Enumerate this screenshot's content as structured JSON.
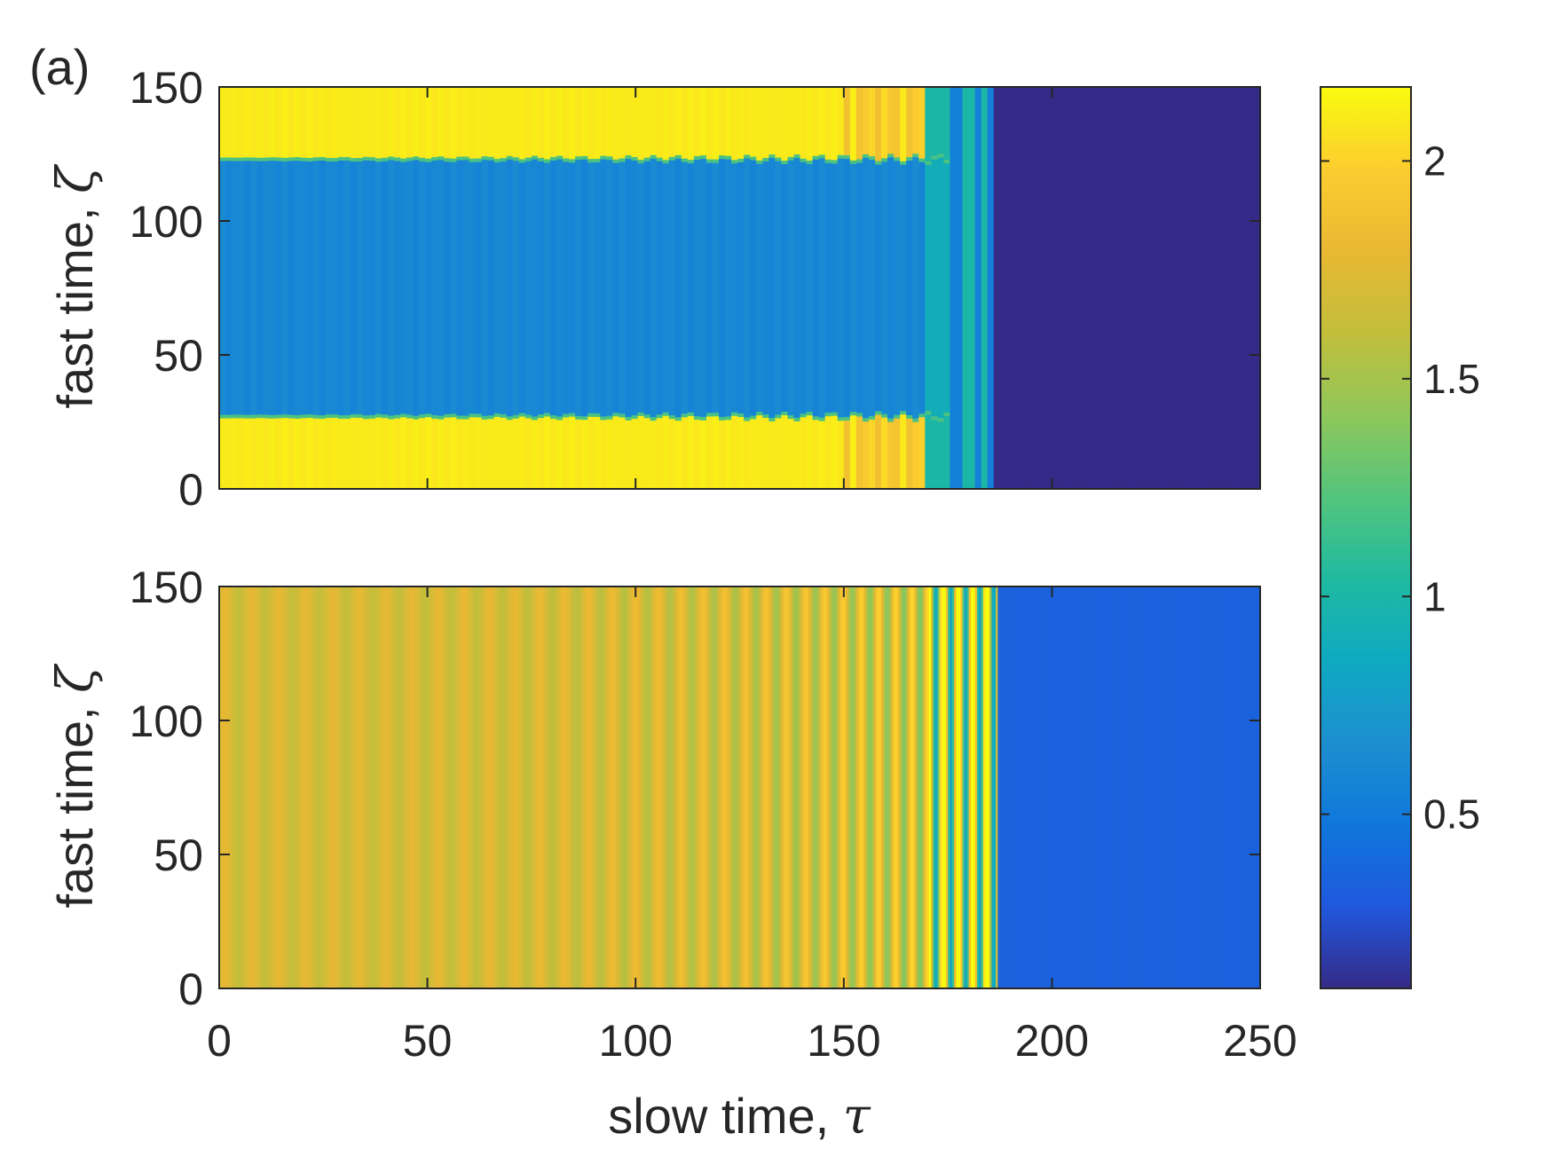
{
  "chart_data": {
    "type": "heatmap",
    "panel_label": "(a)",
    "x": {
      "label_text": "slow time, ",
      "label_symbol": "τ",
      "range": [
        0,
        250
      ],
      "ticks": [
        0,
        50,
        100,
        150,
        200,
        250
      ],
      "tick_labels": [
        "0",
        "50",
        "100",
        "150",
        "200",
        "250"
      ]
    },
    "colorbar": {
      "range": [
        0.1,
        2.17
      ],
      "ticks": [
        0.5,
        1,
        1.5,
        2
      ],
      "tick_labels": [
        "0.5",
        "1",
        "1.5",
        "2"
      ],
      "colormap": "parula",
      "colormap_stops": [
        "#352a87",
        "#2058de",
        "#0f77db",
        "#1d8fd0",
        "#0fa9c2",
        "#1fbaa0",
        "#54c47c",
        "#8fc75a",
        "#c2be3b",
        "#e9b833",
        "#fccd2f",
        "#f9fb0e"
      ]
    },
    "panels": [
      {
        "name": "top",
        "y": {
          "label_text": "fast time, ",
          "label_symbol": "ζ",
          "range": [
            0,
            150
          ],
          "ticks": [
            0,
            50,
            100,
            150
          ],
          "tick_labels": [
            "0",
            "50",
            "100",
            "150"
          ]
        },
        "background_value": 0.1,
        "pattern_end_tau": 186,
        "pulse_band": {
          "lower_zeta": 27,
          "upper_zeta": 123,
          "inner_value": 0.6,
          "outer_value": 2.12
        },
        "stripe_columns_tau": [
          170,
          172.5,
          175,
          179,
          181,
          184
        ]
      },
      {
        "name": "bottom",
        "y": {
          "label_text": "fast time, ",
          "label_symbol": "ζ",
          "range": [
            0,
            150
          ],
          "ticks": [
            0,
            50,
            100,
            150
          ],
          "tick_labels": [
            "0",
            "50",
            "100",
            "150"
          ]
        },
        "background_value": 0.35,
        "pattern_end_tau": 187,
        "uniform_value": 1.7,
        "oscillation": {
          "start_amplitude": 0.08,
          "end_amplitude": 0.45,
          "start_period_tau": 6.5,
          "end_period_tau": 3.2
        }
      }
    ]
  }
}
